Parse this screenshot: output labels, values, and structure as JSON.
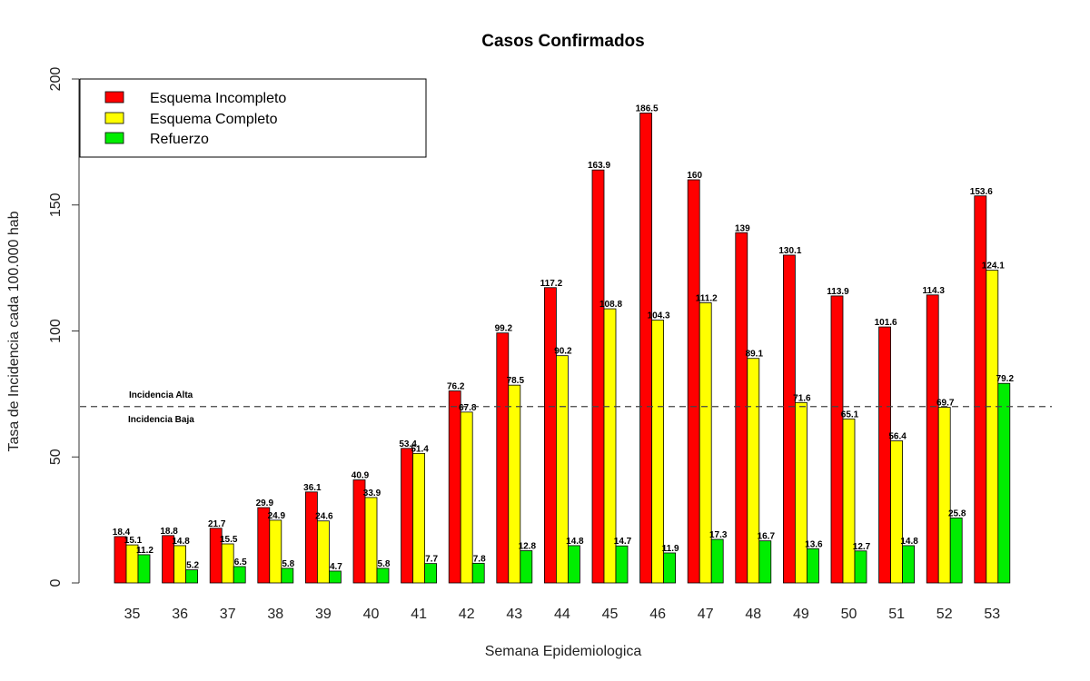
{
  "chart_data": {
    "type": "bar",
    "title": "Casos Confirmados",
    "xlabel": "Semana Epidemiologica",
    "ylabel": "Tasa de Incidencia cada 100.000 hab",
    "ylim": [
      0,
      200
    ],
    "yticks": [
      0,
      50,
      100,
      150,
      200
    ],
    "categories": [
      "35",
      "36",
      "37",
      "38",
      "39",
      "40",
      "41",
      "42",
      "43",
      "44",
      "45",
      "46",
      "47",
      "48",
      "49",
      "50",
      "51",
      "52",
      "53"
    ],
    "series": [
      {
        "name": "Esquema Incompleto",
        "color": "#ff0000",
        "values": [
          18.4,
          18.8,
          21.7,
          29.9,
          36.1,
          40.9,
          53.4,
          76.2,
          99.2,
          117.2,
          163.9,
          186.5,
          160,
          139,
          130.1,
          113.9,
          101.6,
          114.3,
          153.6
        ]
      },
      {
        "name": "Esquema Completo",
        "color": "#ffff00",
        "values": [
          15.1,
          14.8,
          15.5,
          24.9,
          24.6,
          33.9,
          51.4,
          67.8,
          78.5,
          90.2,
          108.8,
          104.3,
          111.2,
          89.1,
          71.6,
          65.1,
          56.4,
          69.7,
          124.1
        ]
      },
      {
        "name": "Refuerzo",
        "color": "#00ee00",
        "values": [
          11.2,
          5.2,
          6.5,
          5.8,
          4.7,
          5.8,
          7.7,
          7.8,
          12.8,
          14.8,
          14.7,
          11.9,
          17.3,
          16.7,
          13.6,
          12.7,
          14.8,
          25.8,
          79.2
        ]
      }
    ],
    "reference_line": {
      "value": 70,
      "label_above": "Incidencia Alta",
      "label_below": "Incidencia Baja",
      "style": "dashed"
    },
    "legend": {
      "position": "top-left"
    },
    "grid": false
  }
}
